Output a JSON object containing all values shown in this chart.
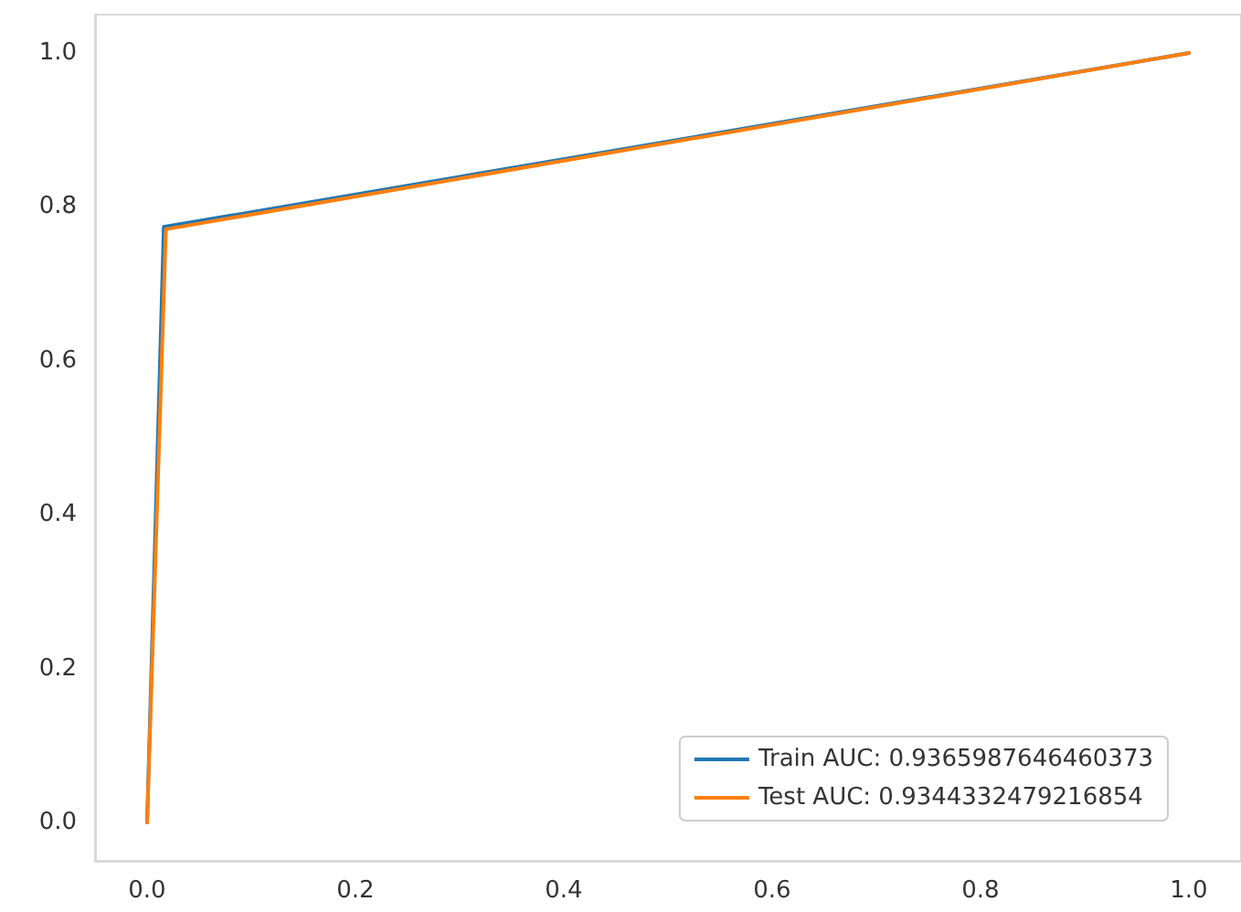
{
  "chart_data": {
    "type": "line",
    "xlim": [
      -0.05,
      1.05
    ],
    "ylim": [
      -0.05,
      1.05
    ],
    "xticks": [
      {
        "value": 0,
        "label": "0.0"
      },
      {
        "value": 0.2,
        "label": "0.2"
      },
      {
        "value": 0.4,
        "label": "0.4"
      },
      {
        "value": 0.6,
        "label": "0.6"
      },
      {
        "value": 0.8,
        "label": "0.8"
      },
      {
        "value": 1,
        "label": "1.0"
      }
    ],
    "yticks": [
      {
        "value": 0,
        "label": "0.0"
      },
      {
        "value": 0.2,
        "label": "0.2"
      },
      {
        "value": 0.4,
        "label": "0.4"
      },
      {
        "value": 0.6,
        "label": "0.6"
      },
      {
        "value": 0.8,
        "label": "0.8"
      },
      {
        "value": 1,
        "label": "1.0"
      }
    ],
    "series": [
      {
        "name": "Train AUC: 0.9365987646460373",
        "color": "#1f77b4",
        "x": [
          0,
          0.016,
          1
        ],
        "values": [
          0,
          0.774,
          1
        ]
      },
      {
        "name": "Test AUC: 0.9344332479216854",
        "color": "#ff7f0e",
        "x": [
          0,
          0.018,
          1
        ],
        "values": [
          0,
          0.771,
          1
        ]
      }
    ],
    "grid": false,
    "legend": "bottom right",
    "marker": "none",
    "line_style": "solid"
  }
}
